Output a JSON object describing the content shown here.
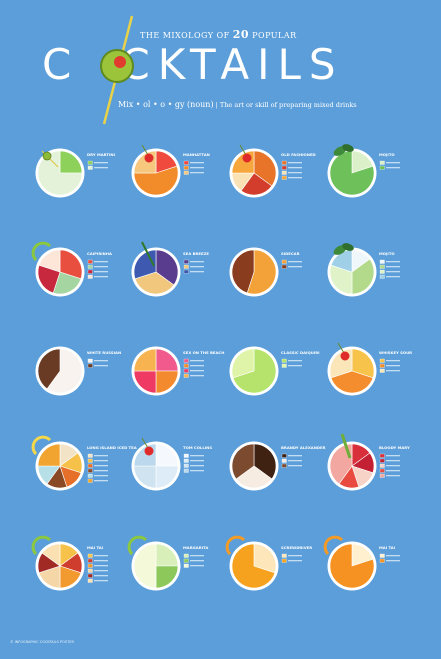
{
  "header": {
    "subtitle_pre": "THE MIXOLOGY OF",
    "subtitle_num": "20",
    "subtitle_post": "POPULAR",
    "title_start": "C",
    "title_rest": "CKTAILS",
    "definition_word": "Mix • ol • o • gy (noun)",
    "definition_text": "| The art or skill of preparing mixed drinks"
  },
  "footer": {
    "text": "© INFOGRAPHIC COCKTAILS POSTER"
  },
  "chart_data": {
    "type": "pie",
    "charts": [
      {
        "name": "DRY MARTINI",
        "garnish": "olive",
        "values": [
          25,
          75
        ],
        "colors": [
          "#8ed15a",
          "#e3f2d9"
        ],
        "legend": [
          "",
          "",
          ""
        ]
      },
      {
        "name": "MANHATTAN",
        "garnish": "cherry",
        "values": [
          20,
          55,
          25
        ],
        "colors": [
          "#ef4a3d",
          "#f28c2a",
          "#f6c77d"
        ],
        "legend": [
          "",
          "",
          "",
          ""
        ]
      },
      {
        "name": "OLD FASHIONED",
        "garnish": "cherry-orange",
        "values": [
          35,
          25,
          15,
          25
        ],
        "colors": [
          "#e8742a",
          "#d23e2b",
          "#fbe2b5",
          "#f7a63b"
        ],
        "legend": [
          "",
          "",
          "",
          "",
          ""
        ]
      },
      {
        "name": "MOJITO",
        "garnish": "mint",
        "values": [
          20,
          80
        ],
        "colors": [
          "#dbf0c8",
          "#6ec05b"
        ],
        "legend": [
          "",
          "",
          ""
        ]
      },
      {
        "name": "CAIPIRINHA",
        "garnish": "lime",
        "values": [
          30,
          25,
          25,
          20
        ],
        "colors": [
          "#e84f3f",
          "#a5d6a1",
          "#c7283d",
          "#fde5d8"
        ],
        "legend": [
          "",
          "",
          "",
          ""
        ]
      },
      {
        "name": "SEA BREEZE",
        "garnish": "straw",
        "values": [
          35,
          35,
          30
        ],
        "colors": [
          "#5a3c8f",
          "#f0c77d",
          "#3d5ab0"
        ],
        "legend": [
          "",
          "",
          ""
        ]
      },
      {
        "name": "SIDECAR",
        "garnish": "none",
        "values": [
          55,
          45
        ],
        "colors": [
          "#f3a23a",
          "#8a3c1f"
        ],
        "legend": [
          "",
          "",
          ""
        ]
      },
      {
        "name": "MOJITO",
        "garnish": "mint",
        "values": [
          15,
          35,
          30,
          20
        ],
        "colors": [
          "#f0f7fb",
          "#b3d98a",
          "#e0f3c8",
          "#9fd0e8"
        ],
        "legend": [
          "",
          "",
          "",
          ""
        ]
      },
      {
        "name": "WHITE RUSSIAN",
        "garnish": "none",
        "values": [
          60,
          40
        ],
        "colors": [
          "#f8f3ee",
          "#6a3b24"
        ],
        "legend": [
          "",
          "",
          ""
        ]
      },
      {
        "name": "SEX ON THE BEACH",
        "garnish": "none",
        "values": [
          25,
          25,
          25,
          25
        ],
        "colors": [
          "#f05a8c",
          "#f48a2e",
          "#ef3a63",
          "#f7b34f"
        ],
        "legend": [
          "",
          "",
          "",
          ""
        ]
      },
      {
        "name": "CLASSIC DAIQUIRI",
        "garnish": "none",
        "values": [
          70,
          30
        ],
        "colors": [
          "#b6e36b",
          "#dff4a8"
        ],
        "legend": [
          "",
          "",
          ""
        ]
      },
      {
        "name": "WHISKEY SOUR",
        "garnish": "cherry",
        "values": [
          30,
          40,
          30
        ],
        "colors": [
          "#f7c34b",
          "#f48d2d",
          "#fbe6b9"
        ],
        "legend": [
          "",
          "",
          ""
        ]
      },
      {
        "name": "LONG ISLAND ICED TEA",
        "garnish": "lemon",
        "values": [
          15,
          15,
          15,
          15,
          15,
          25
        ],
        "colors": [
          "#f2e3c6",
          "#f6c149",
          "#e66f2a",
          "#8b4a26",
          "#b7dfe7",
          "#f1a42f"
        ],
        "legend": [
          "",
          "",
          "",
          "",
          "",
          ""
        ]
      },
      {
        "name": "TOM COLLINS",
        "garnish": "cherry",
        "values": [
          25,
          25,
          25,
          25
        ],
        "colors": [
          "#f5f9fd",
          "#ddecf6",
          "#cfe3f1",
          "#bcd8ec"
        ],
        "legend": [
          "",
          "",
          "",
          ""
        ]
      },
      {
        "name": "BRANDY ALEXANDER",
        "garnish": "none",
        "values": [
          35,
          30,
          35
        ],
        "colors": [
          "#3f2212",
          "#f6ece2",
          "#7b4a2f"
        ],
        "legend": [
          "",
          "",
          ""
        ]
      },
      {
        "name": "BLOODY MARY",
        "garnish": "celery",
        "values": [
          15,
          15,
          15,
          15,
          40
        ],
        "colors": [
          "#d92f3a",
          "#c42033",
          "#f7d2c7",
          "#e84a40",
          "#f2a8a0"
        ],
        "legend": [
          "",
          "",
          "",
          "",
          ""
        ]
      },
      {
        "name": "MAI TAI",
        "garnish": "lime",
        "values": [
          15,
          15,
          20,
          20,
          15,
          15
        ],
        "colors": [
          "#f7c24a",
          "#cf3d2f",
          "#f2992f",
          "#f5d6a7",
          "#a22a24",
          "#fbe0b2"
        ],
        "legend": [
          "",
          "",
          "",
          "",
          "",
          ""
        ]
      },
      {
        "name": "MARGARITA",
        "garnish": "lime",
        "values": [
          25,
          25,
          50
        ],
        "colors": [
          "#d9efb9",
          "#8cc85a",
          "#f4f9d9"
        ],
        "legend": [
          "",
          "",
          ""
        ]
      },
      {
        "name": "SCREWDRIVER",
        "garnish": "orange",
        "values": [
          30,
          70
        ],
        "colors": [
          "#fde6ba",
          "#f6a21e"
        ],
        "legend": [
          "",
          "",
          ""
        ]
      },
      {
        "name": "MAI TAI",
        "garnish": "orange",
        "values": [
          20,
          80
        ],
        "colors": [
          "#fff0cf",
          "#f59221"
        ],
        "legend": [
          "",
          "",
          ""
        ]
      }
    ]
  }
}
